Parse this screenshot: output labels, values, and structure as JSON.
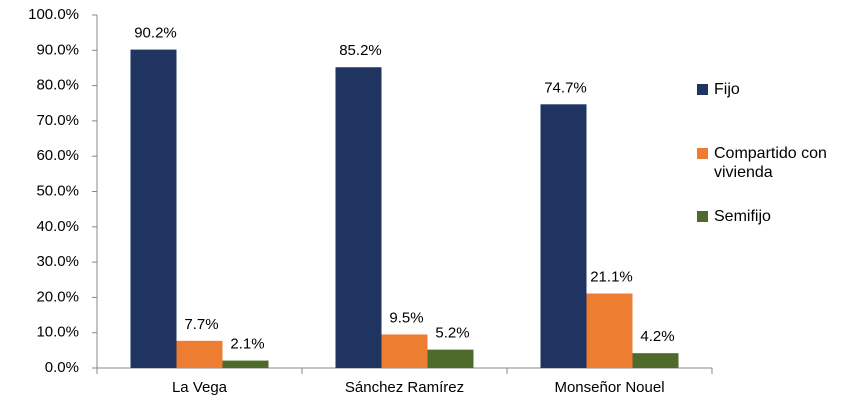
{
  "chart_data": {
    "type": "bar",
    "categories": [
      "La Vega",
      "Sánchez Ramírez",
      "Monseñor Nouel"
    ],
    "series": [
      {
        "name": "Fijo",
        "color": "#1f3461",
        "values": [
          90.2,
          85.2,
          74.7
        ],
        "value_labels": [
          "90.2%",
          "85.2%",
          "74.7%"
        ]
      },
      {
        "name": "Compartido con vivienda",
        "color": "#ed7d31",
        "values": [
          7.7,
          9.5,
          21.1
        ],
        "value_labels": [
          "7.7%",
          "9.5%",
          "21.1%"
        ]
      },
      {
        "name": "Semifijo",
        "color": "#4f6b2b",
        "values": [
          2.1,
          5.2,
          4.2
        ],
        "value_labels": [
          "2.1%",
          "5.2%",
          "4.2%"
        ]
      }
    ],
    "ylim": [
      0,
      100
    ],
    "yticks": [
      {
        "value": 0,
        "label": "0.0%"
      },
      {
        "value": 10,
        "label": "10.0%"
      },
      {
        "value": 20,
        "label": "20.0%"
      },
      {
        "value": 30,
        "label": "30.0%"
      },
      {
        "value": 40,
        "label": "40.0%"
      },
      {
        "value": 50,
        "label": "50.0%"
      },
      {
        "value": 60,
        "label": "60.0%"
      },
      {
        "value": 70,
        "label": "70.0%"
      },
      {
        "value": 80,
        "label": "80.0%"
      },
      {
        "value": 90,
        "label": "90.0%"
      },
      {
        "value": 100,
        "label": "100.0%"
      }
    ],
    "grid": false,
    "legend": "right"
  }
}
